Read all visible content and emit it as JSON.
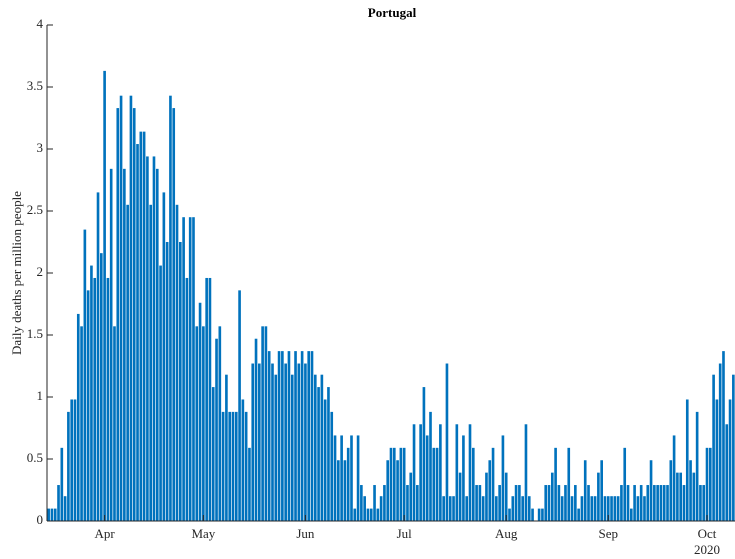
{
  "chart_data": {
    "type": "bar",
    "title": "Portugal",
    "ylabel": "Daily deaths per million people",
    "x_sublabel": "2020",
    "color": "#0072bd",
    "categories": [
      null,
      null,
      null,
      null,
      null,
      null,
      null,
      null,
      null,
      null,
      null,
      null,
      null,
      null,
      null,
      null,
      null,
      "Apr",
      null,
      null,
      null,
      null,
      null,
      null,
      null,
      null,
      null,
      null,
      null,
      null,
      null,
      null,
      null,
      null,
      null,
      null,
      null,
      null,
      null,
      null,
      null,
      null,
      null,
      null,
      null,
      null,
      null,
      "May",
      null,
      null,
      null,
      null,
      null,
      null,
      null,
      null,
      null,
      null,
      null,
      null,
      null,
      null,
      null,
      null,
      null,
      null,
      null,
      null,
      null,
      null,
      null,
      null,
      null,
      null,
      null,
      null,
      null,
      null,
      "Jun",
      null,
      null,
      null,
      null,
      null,
      null,
      null,
      null,
      null,
      null,
      null,
      null,
      null,
      null,
      null,
      null,
      null,
      null,
      null,
      null,
      null,
      null,
      null,
      null,
      null,
      null,
      null,
      null,
      null,
      "Jul",
      null,
      null,
      null,
      null,
      null,
      null,
      null,
      null,
      null,
      null,
      null,
      null,
      null,
      null,
      null,
      null,
      null,
      null,
      null,
      null,
      null,
      null,
      null,
      null,
      null,
      null,
      null,
      null,
      null,
      null,
      "Aug",
      null,
      null,
      null,
      null,
      null,
      null,
      null,
      null,
      null,
      null,
      null,
      null,
      null,
      null,
      null,
      null,
      null,
      null,
      null,
      null,
      null,
      null,
      null,
      null,
      null,
      null,
      null,
      null,
      null,
      null,
      "Sep",
      null,
      null,
      null,
      null,
      null,
      null,
      null,
      null,
      null,
      null,
      null,
      null,
      null,
      null,
      null,
      null,
      null,
      null,
      null,
      null,
      null,
      null,
      null,
      null,
      null,
      null,
      null,
      null,
      null,
      "Oct",
      null,
      null,
      null,
      null,
      null,
      null,
      null,
      null
    ],
    "values": [
      0.1,
      0.1,
      0.1,
      0.29,
      0.59,
      0.2,
      0.88,
      0.98,
      0.98,
      1.67,
      1.57,
      2.35,
      1.86,
      2.06,
      1.96,
      2.65,
      2.16,
      3.63,
      1.96,
      2.84,
      1.57,
      3.33,
      3.43,
      2.84,
      2.55,
      3.43,
      3.33,
      3.04,
      3.14,
      3.14,
      2.94,
      2.55,
      2.94,
      2.84,
      2.06,
      2.65,
      2.25,
      3.43,
      3.33,
      2.55,
      2.25,
      2.45,
      1.96,
      2.45,
      2.45,
      1.57,
      1.76,
      1.57,
      1.96,
      1.96,
      1.08,
      1.47,
      1.57,
      0.88,
      1.18,
      0.88,
      0.88,
      0.88,
      1.86,
      0.98,
      0.88,
      0.59,
      1.27,
      1.47,
      1.27,
      1.57,
      1.57,
      1.37,
      1.27,
      1.18,
      1.37,
      1.37,
      1.27,
      1.37,
      1.18,
      1.37,
      1.27,
      1.37,
      1.27,
      1.37,
      1.37,
      1.18,
      1.08,
      1.18,
      0.98,
      1.08,
      0.88,
      0.69,
      0.49,
      0.69,
      0.49,
      0.59,
      0.69,
      0.1,
      0.69,
      0.29,
      0.2,
      0.1,
      0.1,
      0.29,
      0.1,
      0.2,
      0.29,
      0.49,
      0.59,
      0.59,
      0.49,
      0.59,
      0.59,
      0.29,
      0.39,
      0.78,
      0.29,
      0.78,
      1.08,
      0.69,
      0.88,
      0.59,
      0.59,
      0.78,
      0.2,
      1.27,
      0.2,
      0.2,
      0.78,
      0.39,
      0.69,
      0.2,
      0.78,
      0.59,
      0.29,
      0.29,
      0.2,
      0.39,
      0.49,
      0.59,
      0.2,
      0.29,
      0.69,
      0.39,
      0.1,
      0.2,
      0.29,
      0.29,
      0.2,
      0.78,
      0.2,
      0.1,
      0,
      0.1,
      0.1,
      0.29,
      0.29,
      0.39,
      0.59,
      0.29,
      0.2,
      0.29,
      0.59,
      0.2,
      0.29,
      0.1,
      0.2,
      0.49,
      0.29,
      0.2,
      0.2,
      0.39,
      0.49,
      0.2,
      0.2,
      0.2,
      0.2,
      0.2,
      0.29,
      0.59,
      0.29,
      0.1,
      0.29,
      0.2,
      0.29,
      0.2,
      0.29,
      0.49,
      0.29,
      0.29,
      0.29,
      0.29,
      0.29,
      0.49,
      0.69,
      0.39,
      0.39,
      0.29,
      0.98,
      0.49,
      0.39,
      0.88,
      0.29,
      0.29,
      0.59,
      0.59,
      1.18,
      0.98,
      1.27,
      1.37,
      0.78,
      0.98,
      1.18
    ],
    "ylim": [
      0,
      4
    ],
    "yticks": [
      0,
      0.5,
      1,
      1.5,
      2,
      2.5,
      3,
      3.5,
      4
    ]
  }
}
